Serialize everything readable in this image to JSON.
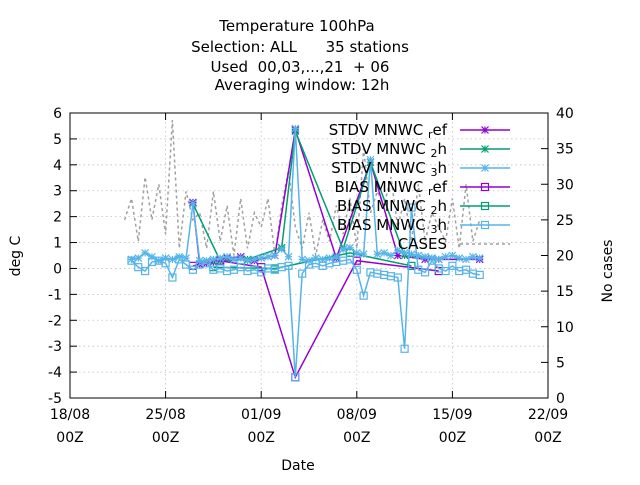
{
  "chart_data": {
    "type": "line",
    "title_lines": [
      "Temperature 100hPa",
      "Selection: ALL      35 stations",
      "Used  00,03,...,21  + 06",
      "Averaging window: 12h"
    ],
    "xlabel": "Date",
    "ylabel": "deg C",
    "y2label": "No cases",
    "x_ticks": [
      {
        "day": 0,
        "line1": "18/08",
        "line2": "00Z"
      },
      {
        "day": 7,
        "line1": "25/08",
        "line2": "00Z"
      },
      {
        "day": 14,
        "line1": "01/09",
        "line2": "00Z"
      },
      {
        "day": 21,
        "line1": "08/09",
        "line2": "00Z"
      },
      {
        "day": 28,
        "line1": "15/09",
        "line2": "00Z"
      },
      {
        "day": 35,
        "line1": "22/09",
        "line2": "00Z"
      }
    ],
    "xlim": [
      0,
      35
    ],
    "ylim": [
      -5,
      6
    ],
    "y_ticks": [
      -5,
      -4,
      -3,
      -2,
      -1,
      0,
      1,
      2,
      3,
      4,
      5,
      6
    ],
    "y2lim": [
      0,
      40
    ],
    "y2_ticks": [
      0,
      5,
      10,
      15,
      20,
      25,
      30,
      35,
      40
    ],
    "grid": true,
    "legend_position": "top-right",
    "legend": [
      {
        "label": "STDV MNWC_ref",
        "base": "STDV MNWC",
        "sub": "r",
        "rest": "ef",
        "color": "#9400d3",
        "marker": "star"
      },
      {
        "label": "STDV MNWC_2h",
        "base": "STDV MNWC",
        "sub": "2",
        "rest": "h",
        "color": "#009e73",
        "marker": "star"
      },
      {
        "label": "STDV MNWC_3h",
        "base": "STDV MNWC",
        "sub": "3",
        "rest": "h",
        "color": "#56b4e9",
        "marker": "star"
      },
      {
        "label": "BIAS MNWC_ref",
        "base": "BIAS MNWC",
        "sub": "r",
        "rest": "ef",
        "color": "#9400d3",
        "marker": "square"
      },
      {
        "label": "BIAS MNWC_2h",
        "base": "BIAS MNWC",
        "sub": "2",
        "rest": "h",
        "color": "#009e73",
        "marker": "square"
      },
      {
        "label": "BIAS MNWC_3h",
        "base": "BIAS MNWC",
        "sub": "3",
        "rest": "h",
        "color": "#56b4e9",
        "marker": "square"
      },
      {
        "label": "CASES",
        "color": "#a0a0a0",
        "marker": "none",
        "dash": true
      }
    ],
    "series": [
      {
        "name": "STDV MNWC_ref",
        "color": "#9400d3",
        "marker": "star",
        "x": [
          9.0,
          9.5,
          10.0,
          10.5,
          11.5,
          12.5,
          13.5,
          15.0,
          16.5,
          19.5,
          22.0,
          24.0,
          26.0,
          27.0,
          30.0
        ],
        "y": [
          2.55,
          0.15,
          0.2,
          0.25,
          0.4,
          0.45,
          0.3,
          0.5,
          5.35,
          0.4,
          4.1,
          0.5,
          0.35,
          0.35,
          0.35
        ]
      },
      {
        "name": "STDV MNWC_2h",
        "color": "#009e73",
        "marker": "star",
        "x": [
          9.0,
          11.0,
          13.0,
          15.5,
          16.5,
          20.0,
          22.0,
          24.5,
          26.5
        ],
        "y": [
          2.5,
          0.3,
          0.35,
          0.8,
          5.3,
          0.75,
          4.1,
          0.5,
          0.4
        ]
      },
      {
        "name": "STDV MNWC_3h",
        "color": "#56b4e9",
        "marker": "star",
        "x": [
          4.5,
          5.0,
          5.5,
          6.0,
          6.5,
          7.0,
          7.5,
          8.0,
          8.5,
          9.0,
          9.5,
          10.0,
          10.5,
          11.0,
          11.5,
          12.0,
          12.5,
          13.0,
          13.5,
          14.0,
          14.5,
          15.0,
          15.5,
          16.0,
          16.5,
          17.0,
          17.5,
          18.0,
          18.5,
          19.0,
          19.5,
          20.0,
          20.5,
          21.0,
          21.5,
          22.0,
          22.5,
          23.0,
          23.5,
          24.0,
          24.5,
          25.0,
          25.5,
          26.0,
          26.5,
          27.0,
          27.5,
          28.0,
          28.5,
          29.0,
          29.5,
          30.0
        ],
        "y": [
          0.35,
          0.4,
          0.6,
          0.45,
          0.3,
          0.4,
          0.35,
          0.45,
          0.4,
          2.5,
          0.3,
          0.3,
          0.35,
          0.4,
          0.45,
          0.35,
          0.4,
          0.3,
          0.35,
          0.4,
          0.45,
          0.5,
          0.75,
          0.45,
          5.4,
          0.35,
          0.3,
          0.4,
          0.35,
          0.4,
          0.45,
          0.75,
          0.8,
          0.6,
          0.55,
          4.2,
          0.55,
          0.6,
          0.5,
          0.7,
          0.6,
          0.55,
          0.5,
          0.45,
          0.4,
          0.35,
          0.45,
          0.5,
          0.4,
          0.35,
          0.45,
          0.4
        ]
      },
      {
        "name": "BIAS MNWC_ref",
        "color": "#9400d3",
        "marker": "square",
        "x": [
          9.0,
          11.0,
          14.0,
          16.5,
          21.0,
          27.0
        ],
        "y": [
          0.1,
          0.3,
          0.05,
          -4.2,
          0.3,
          -0.1
        ]
      },
      {
        "name": "BIAS MNWC_2h",
        "color": "#009e73",
        "marker": "square",
        "x": [
          10.5,
          15.0,
          20.5,
          25.0
        ],
        "y": [
          0.05,
          0.0,
          0.6,
          0.1
        ]
      },
      {
        "name": "BIAS MNWC_3h",
        "color": "#56b4e9",
        "marker": "square",
        "x": [
          4.5,
          5.0,
          5.5,
          6.0,
          6.5,
          7.0,
          7.5,
          8.0,
          8.5,
          9.0,
          9.5,
          10.0,
          10.5,
          11.0,
          11.5,
          12.0,
          12.5,
          13.0,
          13.5,
          14.0,
          14.5,
          15.0,
          15.5,
          16.0,
          16.5,
          17.0,
          17.5,
          18.0,
          18.5,
          19.0,
          19.5,
          20.0,
          20.5,
          21.0,
          21.5,
          22.0,
          22.5,
          23.0,
          23.5,
          24.0,
          24.5,
          25.0,
          25.5,
          26.0,
          26.5,
          27.0,
          27.5,
          28.0,
          28.5,
          29.0,
          29.5,
          30.0
        ],
        "y": [
          0.3,
          0.05,
          -0.1,
          0.25,
          0.3,
          0.2,
          -0.35,
          0.35,
          0.15,
          -0.05,
          0.15,
          0.2,
          -0.05,
          0.0,
          -0.1,
          -0.05,
          0.05,
          -0.1,
          -0.05,
          -0.15,
          0.0,
          -0.05,
          0.05,
          0.1,
          -4.2,
          -0.2,
          0.15,
          0.2,
          0.1,
          0.2,
          0.25,
          0.3,
          0.35,
          -0.05,
          -1.05,
          -0.15,
          -0.2,
          -0.25,
          -0.3,
          -0.35,
          -3.1,
          2.35,
          -0.05,
          -0.15,
          0.3,
          0.0,
          -0.1,
          0.1,
          -0.1,
          -0.05,
          -0.2,
          -0.25
        ]
      },
      {
        "name": "CASES",
        "color": "#a0a0a0",
        "marker": "none",
        "dash": true,
        "axis": "y2",
        "x": [
          4.0,
          4.5,
          5.0,
          5.5,
          6.0,
          6.5,
          7.0,
          7.5,
          8.0,
          8.5,
          9.0,
          9.5,
          10.0,
          10.5,
          11.0,
          11.5,
          12.0,
          12.5,
          13.0,
          13.5,
          14.0,
          14.5,
          15.0,
          15.5,
          16.0,
          16.5,
          17.0,
          17.5,
          18.0,
          18.5,
          19.0,
          19.5,
          20.0,
          20.5,
          21.0,
          21.5,
          22.0,
          22.5,
          23.0,
          23.5,
          24.0,
          24.5,
          25.0,
          25.5,
          26.0,
          26.5,
          27.0,
          27.5,
          28.0,
          28.5,
          29.0,
          29.5,
          30.0
        ],
        "y": [
          25,
          28,
          22,
          31,
          25,
          30,
          23,
          39,
          21,
          29,
          25,
          26,
          21,
          29,
          22,
          27,
          20,
          28,
          21,
          26,
          24,
          28,
          20,
          27,
          32,
          24,
          21,
          26,
          20,
          25,
          22,
          27,
          23,
          28,
          21,
          35,
          26,
          29,
          27,
          31,
          24,
          28,
          22,
          30,
          22,
          26,
          24,
          22,
          28,
          21,
          30,
          22,
          25
        ]
      }
    ]
  }
}
